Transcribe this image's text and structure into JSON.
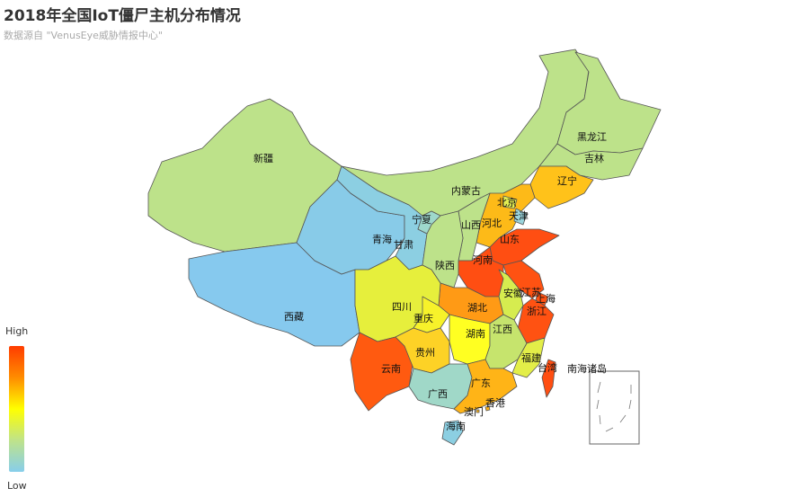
{
  "title": "2018年全国IoT僵尸主机分布情况",
  "subtitle": "数据源自 \"VenusEye威胁情报中心\"",
  "legend": {
    "high": "High",
    "low": "Low",
    "colors": [
      "#ff3c00",
      "#ff8c00",
      "#ffff00",
      "#bfe38a",
      "#87ceeb"
    ]
  },
  "inset_label": "南海诸岛",
  "provinces": [
    {
      "name": "新疆",
      "color": "#bde28a"
    },
    {
      "name": "西藏",
      "color": "#86c9ee"
    },
    {
      "name": "青海",
      "color": "#88cbe8"
    },
    {
      "name": "甘肃",
      "color": "#8ccfe2"
    },
    {
      "name": "内蒙古",
      "color": "#bde28a"
    },
    {
      "name": "黑龙江",
      "color": "#bde28a"
    },
    {
      "name": "吉林",
      "color": "#bde28a"
    },
    {
      "name": "辽宁",
      "color": "#ffc21a"
    },
    {
      "name": "河北",
      "color": "#fdba18"
    },
    {
      "name": "北京",
      "color": "#e3ee52"
    },
    {
      "name": "天津",
      "color": "#9ad4dc"
    },
    {
      "name": "山西",
      "color": "#bde28a"
    },
    {
      "name": "山东",
      "color": "#ff4e12"
    },
    {
      "name": "河南",
      "color": "#ff4e12"
    },
    {
      "name": "陕西",
      "color": "#bde28a"
    },
    {
      "name": "宁夏",
      "color": "#9ed8cc"
    },
    {
      "name": "江苏",
      "color": "#ff5212"
    },
    {
      "name": "安徽",
      "color": "#d6ec4f"
    },
    {
      "name": "上海",
      "color": "#ff5212"
    },
    {
      "name": "浙江",
      "color": "#ff5212"
    },
    {
      "name": "湖北",
      "color": "#ff9a15"
    },
    {
      "name": "四川",
      "color": "#e6ef3c"
    },
    {
      "name": "重庆",
      "color": "#f7f22a"
    },
    {
      "name": "云南",
      "color": "#ff5a10"
    },
    {
      "name": "贵州",
      "color": "#fdd226"
    },
    {
      "name": "湖南",
      "color": "#ffff22"
    },
    {
      "name": "江西",
      "color": "#c6e46d"
    },
    {
      "name": "福建",
      "color": "#e3ee48"
    },
    {
      "name": "广西",
      "color": "#a0d8c8"
    },
    {
      "name": "广东",
      "color": "#ffb417"
    },
    {
      "name": "海南",
      "color": "#8ccfe2"
    },
    {
      "name": "台湾",
      "color": "#ff4e12"
    },
    {
      "name": "香港",
      "color": "#ffb417"
    },
    {
      "name": "澳门",
      "color": "#ffb417"
    }
  ]
}
